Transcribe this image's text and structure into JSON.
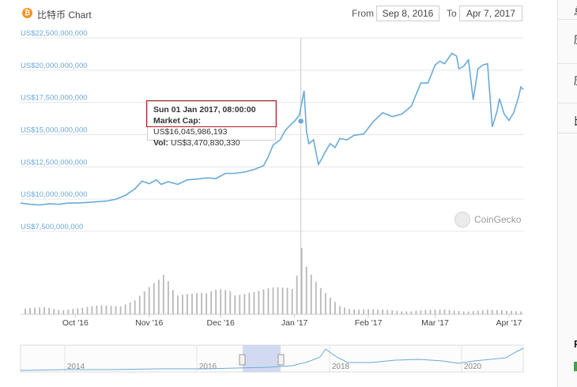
{
  "header": {
    "title": "比特币 Chart",
    "from_label": "From",
    "from_value": "Sep 8, 2016",
    "to_label": "To",
    "to_value": "Apr 7, 2017"
  },
  "tooltip": {
    "date": "Sun 01 Jan 2017, 08:00:00",
    "market_cap_label": "Market Cap:",
    "market_cap_value": "US$16,045,986,193",
    "vol_label": "Vol:",
    "vol_value": "US$3,470,830,330"
  },
  "watermark": "CoinGecko",
  "right_panel": {
    "chars": [
      "总",
      "历",
      "历",
      "比",
      "P"
    ]
  },
  "colors": {
    "line": "#6aaad8",
    "bitcoin": "#f7931a",
    "axis_label": "#6aa8d6",
    "navigator_selection": "#c9d3ef"
  },
  "chart_data": {
    "type": "line",
    "title": "比特币 Chart",
    "ylim": [
      7500000000,
      22500000000
    ],
    "y_ticks": [
      {
        "value": 22500000000,
        "label": "US$22,500,000,000"
      },
      {
        "value": 20000000000,
        "label": "US$20,000,000,000"
      },
      {
        "value": 17500000000,
        "label": "US$17,500,000,000"
      },
      {
        "value": 15000000000,
        "label": "US$15,000,000,000"
      },
      {
        "value": 12500000000,
        "label": "US$12,500,000,000"
      },
      {
        "value": 10000000000,
        "label": "US$10,000,000,000"
      },
      {
        "value": 7500000000,
        "label": "US$7,500,000,000"
      }
    ],
    "xlim": [
      "2016-09-08",
      "2017-04-07"
    ],
    "x_ticks": [
      {
        "date": "2016-10-01",
        "label": "Oct '16"
      },
      {
        "date": "2016-11-01",
        "label": "Nov '16"
      },
      {
        "date": "2016-12-01",
        "label": "Dec '16"
      },
      {
        "date": "2017-01-01",
        "label": "Jan '17"
      },
      {
        "date": "2017-02-01",
        "label": "Feb '17"
      },
      {
        "date": "2017-03-01",
        "label": "Mar '17"
      },
      {
        "date": "2017-04-01",
        "label": "Apr '17"
      }
    ],
    "grid": true,
    "series": [
      {
        "name": "Market Cap",
        "points": [
          [
            "2016-09-08",
            9700000000
          ],
          [
            "2016-09-12",
            9600000000
          ],
          [
            "2016-09-16",
            9550000000
          ],
          [
            "2016-09-20",
            9650000000
          ],
          [
            "2016-09-24",
            9600000000
          ],
          [
            "2016-09-28",
            9700000000
          ],
          [
            "2016-10-02",
            9700000000
          ],
          [
            "2016-10-06",
            9750000000
          ],
          [
            "2016-10-10",
            9800000000
          ],
          [
            "2016-10-14",
            9850000000
          ],
          [
            "2016-10-18",
            10000000000
          ],
          [
            "2016-10-22",
            10300000000
          ],
          [
            "2016-10-26",
            10800000000
          ],
          [
            "2016-10-29",
            11400000000
          ],
          [
            "2016-11-01",
            11200000000
          ],
          [
            "2016-11-04",
            11500000000
          ],
          [
            "2016-11-06",
            11150000000
          ],
          [
            "2016-11-09",
            11350000000
          ],
          [
            "2016-11-13",
            11150000000
          ],
          [
            "2016-11-17",
            11500000000
          ],
          [
            "2016-11-21",
            11550000000
          ],
          [
            "2016-11-25",
            11650000000
          ],
          [
            "2016-11-29",
            11600000000
          ],
          [
            "2016-12-03",
            12000000000
          ],
          [
            "2016-12-07",
            12000000000
          ],
          [
            "2016-12-11",
            12100000000
          ],
          [
            "2016-12-15",
            12300000000
          ],
          [
            "2016-12-19",
            12600000000
          ],
          [
            "2016-12-21",
            13300000000
          ],
          [
            "2016-12-23",
            14200000000
          ],
          [
            "2016-12-26",
            14600000000
          ],
          [
            "2016-12-28",
            15300000000
          ],
          [
            "2016-12-30",
            15700000000
          ],
          [
            "2017-01-01",
            16050000000
          ],
          [
            "2017-01-03",
            16500000000
          ],
          [
            "2017-01-05",
            18400000000
          ],
          [
            "2017-01-06",
            15300000000
          ],
          [
            "2017-01-07",
            14300000000
          ],
          [
            "2017-01-09",
            14600000000
          ],
          [
            "2017-01-11",
            12700000000
          ],
          [
            "2017-01-12",
            13000000000
          ],
          [
            "2017-01-14",
            13700000000
          ],
          [
            "2017-01-16",
            14300000000
          ],
          [
            "2017-01-18",
            14000000000
          ],
          [
            "2017-01-20",
            14700000000
          ],
          [
            "2017-01-23",
            14600000000
          ],
          [
            "2017-01-26",
            14950000000
          ],
          [
            "2017-01-30",
            15050000000
          ],
          [
            "2017-02-03",
            16000000000
          ],
          [
            "2017-02-07",
            16700000000
          ],
          [
            "2017-02-11",
            16400000000
          ],
          [
            "2017-02-15",
            16600000000
          ],
          [
            "2017-02-19",
            17200000000
          ],
          [
            "2017-02-23",
            19000000000
          ],
          [
            "2017-02-26",
            19000000000
          ],
          [
            "2017-03-01",
            20400000000
          ],
          [
            "2017-03-03",
            20700000000
          ],
          [
            "2017-03-05",
            20500000000
          ],
          [
            "2017-03-08",
            21300000000
          ],
          [
            "2017-03-10",
            21100000000
          ],
          [
            "2017-03-11",
            20100000000
          ],
          [
            "2017-03-13",
            20300000000
          ],
          [
            "2017-03-15",
            20800000000
          ],
          [
            "2017-03-17",
            17700000000
          ],
          [
            "2017-03-19",
            20100000000
          ],
          [
            "2017-03-21",
            20400000000
          ],
          [
            "2017-03-23",
            20500000000
          ],
          [
            "2017-03-25",
            15600000000
          ],
          [
            "2017-03-27",
            16800000000
          ],
          [
            "2017-03-28",
            17800000000
          ],
          [
            "2017-03-30",
            16600000000
          ],
          [
            "2017-04-01",
            16100000000
          ],
          [
            "2017-04-03",
            16700000000
          ],
          [
            "2017-04-05",
            17900000000
          ],
          [
            "2017-04-06",
            18700000000
          ],
          [
            "2017-04-07",
            18500000000
          ]
        ]
      },
      {
        "name": "Volume",
        "points": [
          [
            "2016-09-10",
            6
          ],
          [
            "2016-09-18",
            8
          ],
          [
            "2016-09-26",
            6
          ],
          [
            "2016-10-04",
            7
          ],
          [
            "2016-10-12",
            10
          ],
          [
            "2016-10-20",
            12
          ],
          [
            "2016-10-26",
            16
          ],
          [
            "2016-10-31",
            26
          ],
          [
            "2016-11-05",
            38
          ],
          [
            "2016-11-07",
            46
          ],
          [
            "2016-11-09",
            42
          ],
          [
            "2016-11-12",
            30
          ],
          [
            "2016-11-18",
            24
          ],
          [
            "2016-11-25",
            22
          ],
          [
            "2016-11-30",
            28
          ],
          [
            "2016-12-05",
            32
          ],
          [
            "2016-12-10",
            26
          ],
          [
            "2016-12-16",
            24
          ],
          [
            "2016-12-22",
            28
          ],
          [
            "2016-12-27",
            33
          ],
          [
            "2017-01-01",
            40
          ],
          [
            "2017-01-04",
            85
          ],
          [
            "2017-01-06",
            56
          ],
          [
            "2017-01-08",
            44
          ],
          [
            "2017-01-11",
            30
          ],
          [
            "2017-01-15",
            20
          ],
          [
            "2017-01-20",
            10
          ],
          [
            "2017-01-28",
            6
          ],
          [
            "2017-02-06",
            5
          ],
          [
            "2017-02-15",
            4
          ],
          [
            "2017-02-24",
            5
          ],
          [
            "2017-03-05",
            5
          ],
          [
            "2017-03-14",
            4
          ],
          [
            "2017-03-23",
            5
          ],
          [
            "2017-04-01",
            4
          ],
          [
            "2017-04-06",
            4
          ]
        ]
      }
    ],
    "navigator": {
      "x_ticks": [
        "2014",
        "2016",
        "2018",
        "2020"
      ]
    }
  }
}
